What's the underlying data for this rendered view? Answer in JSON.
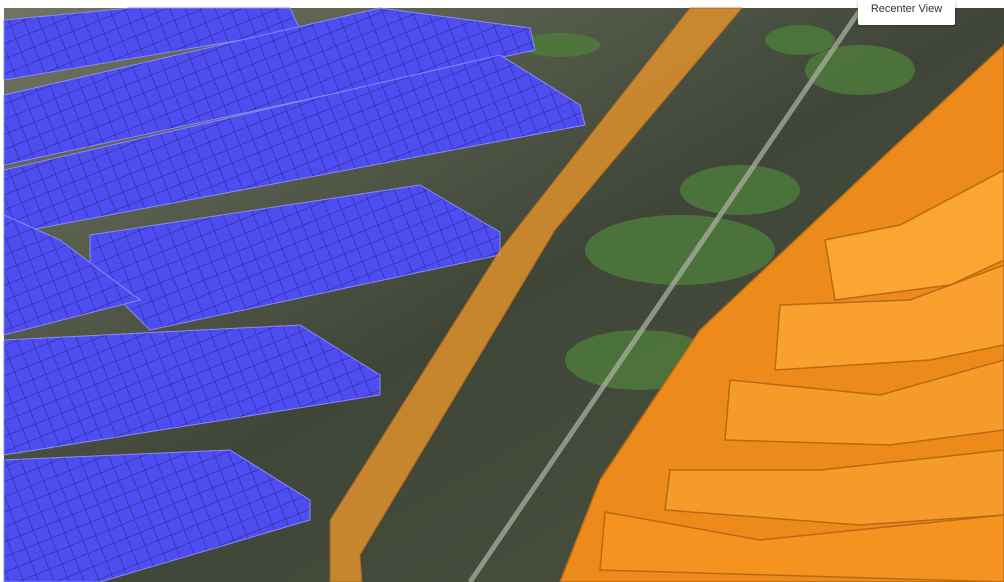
{
  "button": {
    "label": "Recenter View"
  }
}
